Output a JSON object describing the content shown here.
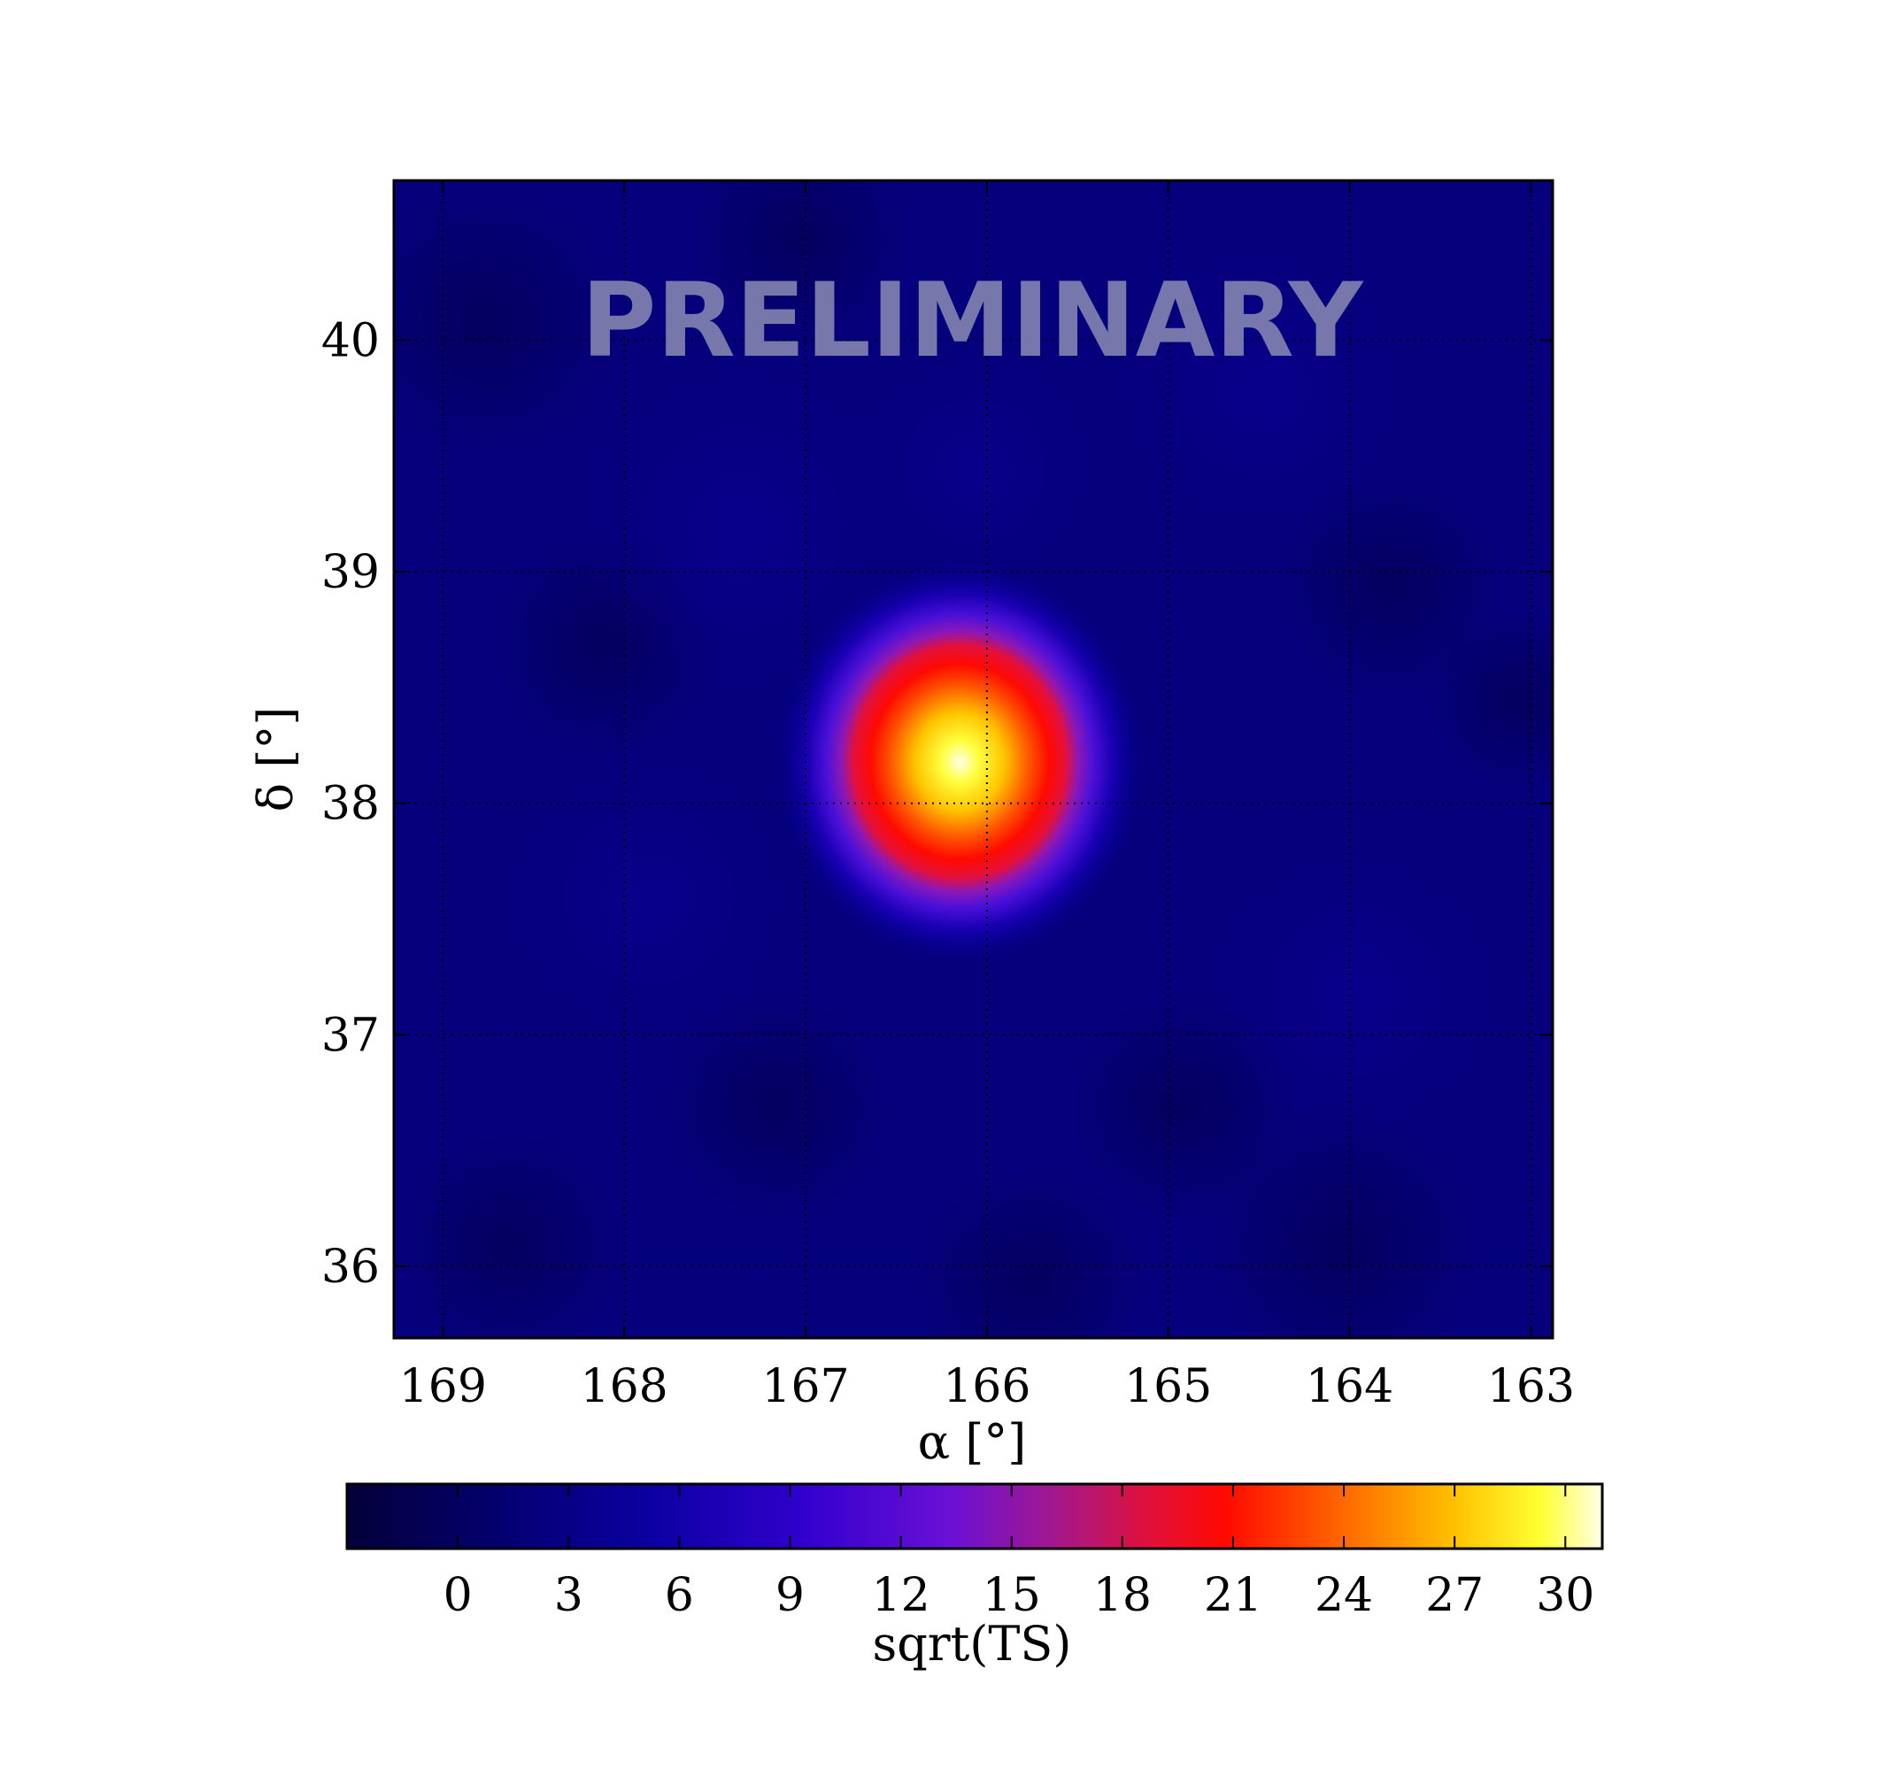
{
  "chart_data": {
    "type": "heatmap",
    "watermark": "PRELIMINARY",
    "xlabel": "α [°]",
    "ylabel": "δ [°]",
    "xlim": [
      169.27,
      162.88
    ],
    "ylim": [
      35.69,
      40.69
    ],
    "x_ticks": [
      169,
      168,
      167,
      166,
      165,
      164,
      163
    ],
    "y_ticks": [
      36,
      37,
      38,
      39,
      40
    ],
    "grid": true,
    "grid_style": "dotted",
    "peak": {
      "ra": 166.15,
      "dec": 38.18,
      "value": 31
    },
    "colormap": "gnuplot2",
    "colorbar": {
      "label": "sqrt(TS)",
      "range": [
        -3,
        31
      ],
      "ticks": [
        0,
        3,
        6,
        9,
        12,
        15,
        18,
        21,
        24,
        27,
        30
      ],
      "orientation": "horizontal"
    }
  }
}
